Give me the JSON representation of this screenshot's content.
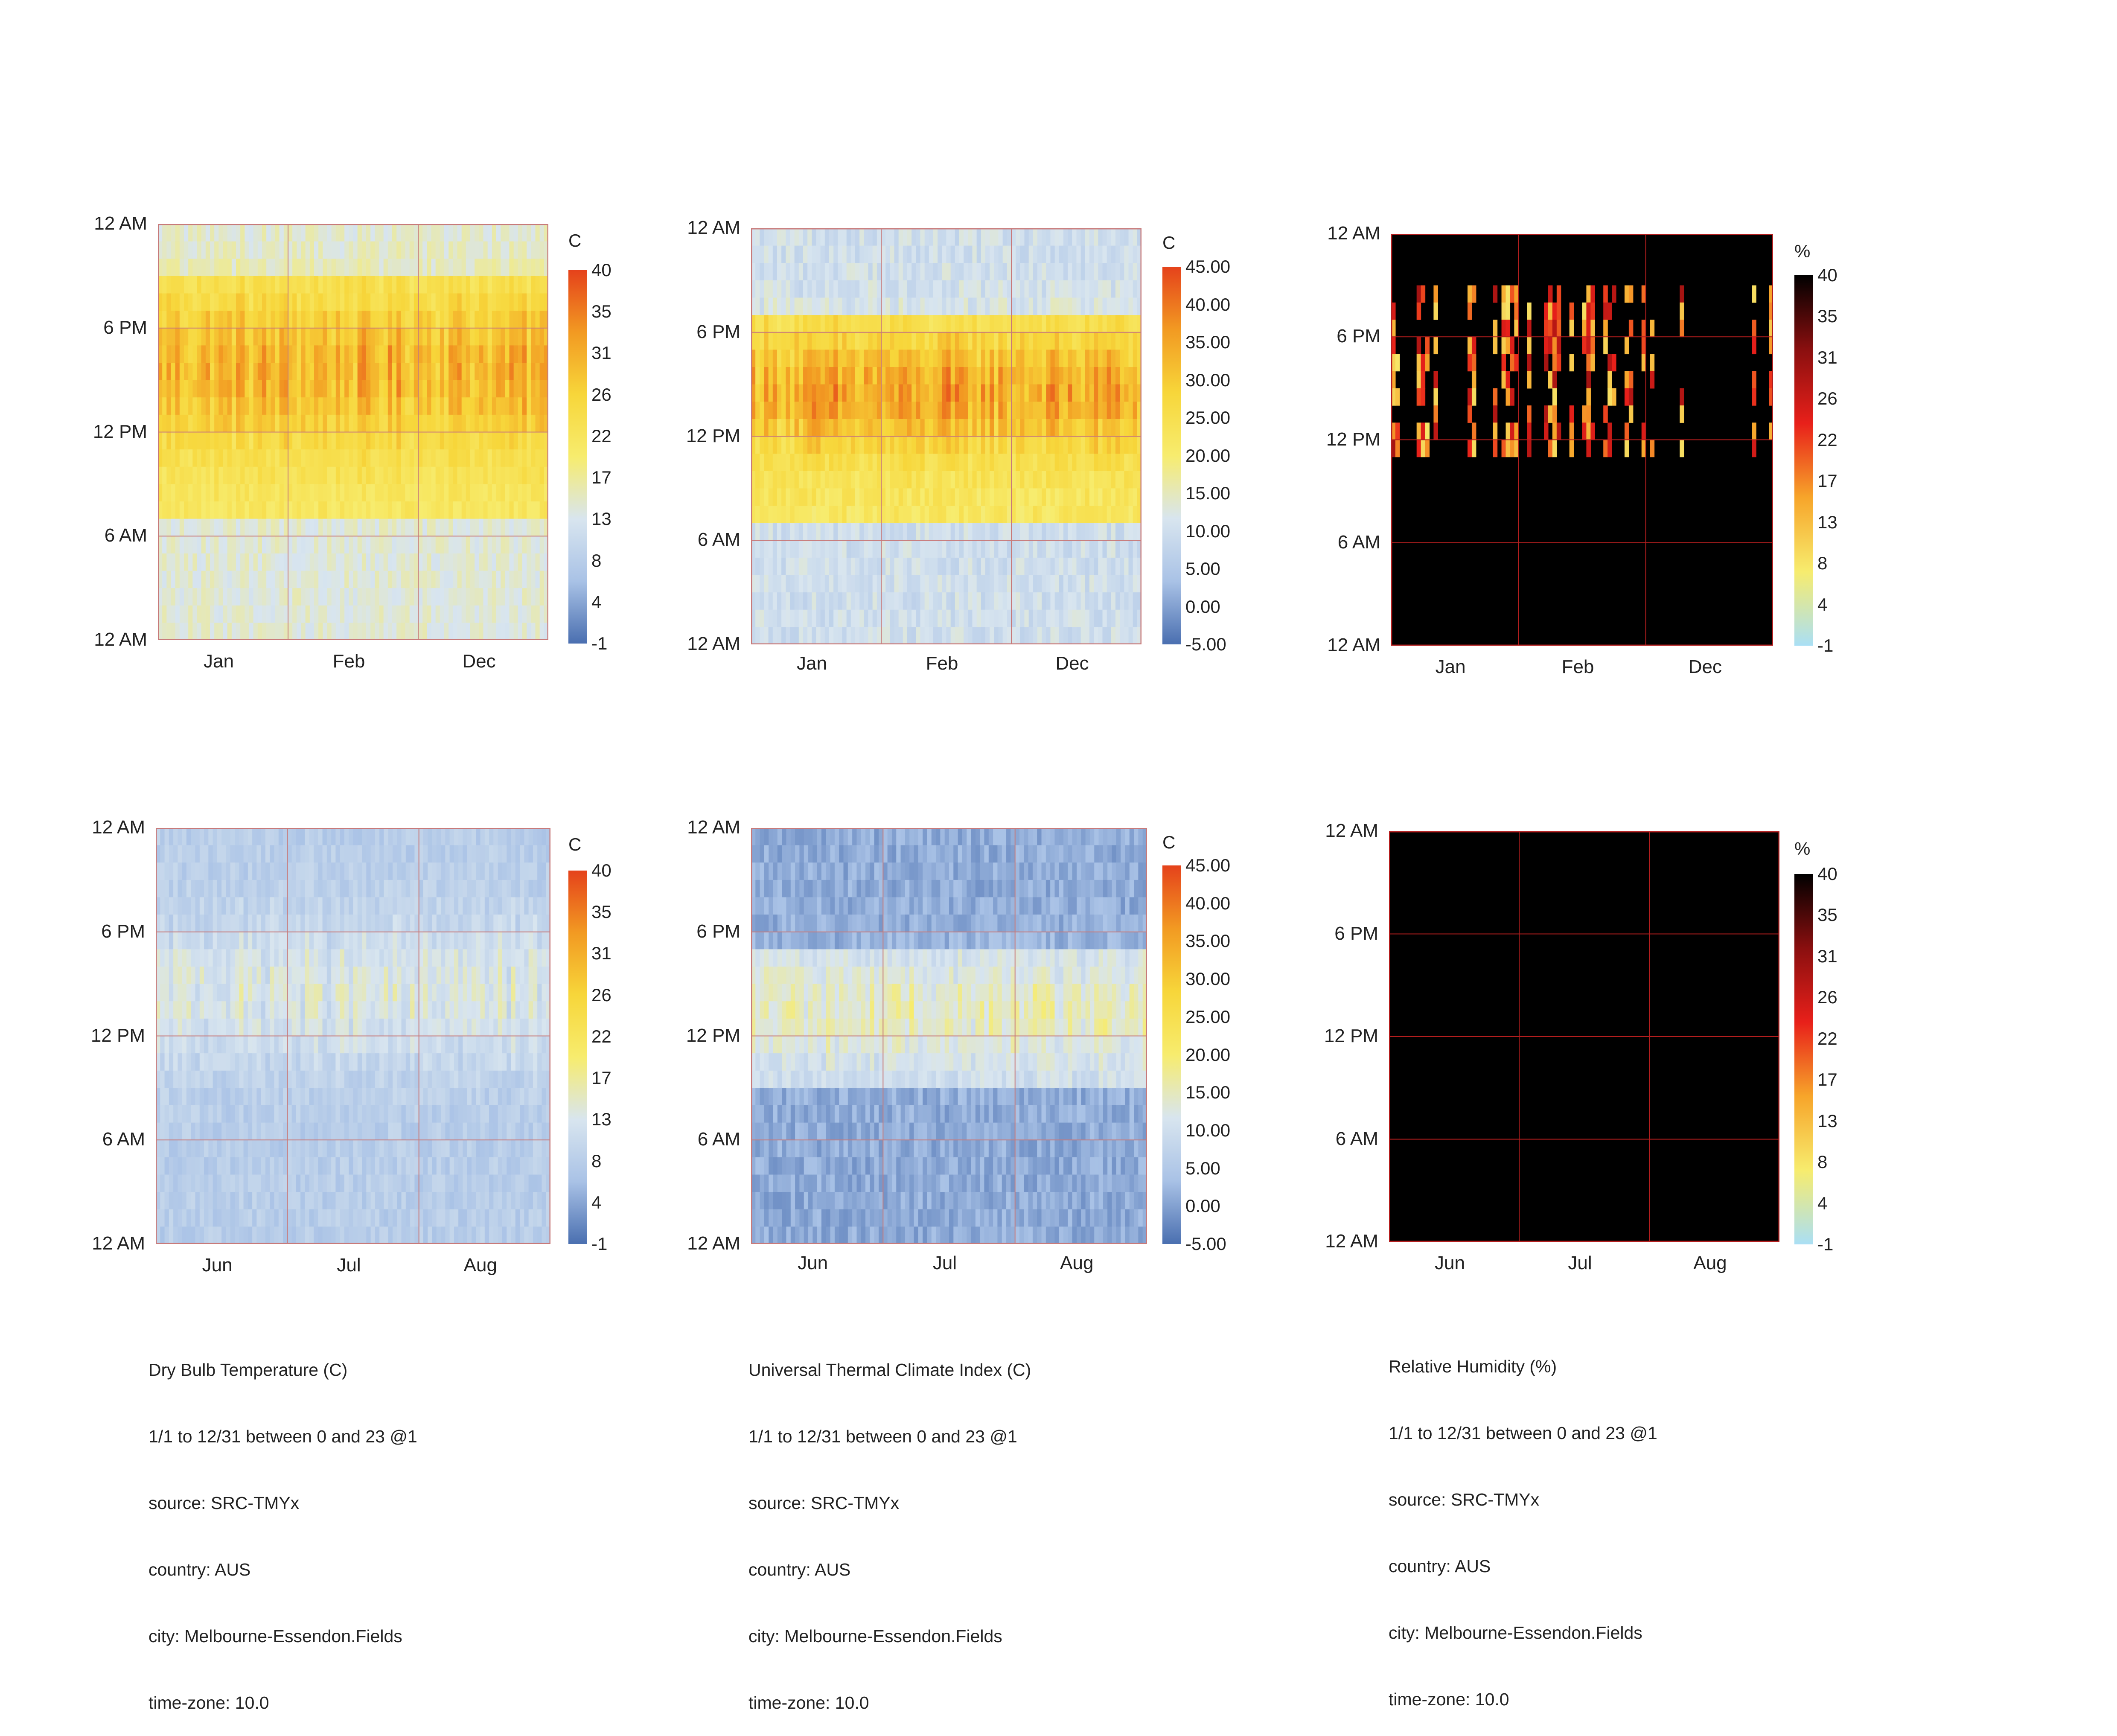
{
  "charts": [
    {
      "id": "drybulb-jan-dec",
      "type": "heatmap",
      "title": "Dry Bulb Temperature (C)",
      "unit": "C",
      "y_ticks": [
        "12 AM",
        "6 PM",
        "12 PM",
        "6 AM",
        "12 AM"
      ],
      "x_ticks": [
        "Jan",
        "Feb",
        "Dec"
      ],
      "legend_ticks": [
        "40",
        "35",
        "31",
        "26",
        "22",
        "17",
        "13",
        "8",
        "4",
        "-1"
      ],
      "legend_range": [
        -1,
        40
      ],
      "palette": [
        "#4a6fb0",
        "#a9c2e6",
        "#d8e5ef",
        "#f7ec6e",
        "#f7d63a",
        "#f29a22",
        "#e5421b"
      ],
      "background": "#f7e76a",
      "grid_color": "#c87a7a",
      "pattern": "summer-temp",
      "mean_value": 21
    },
    {
      "id": "utci-jan-dec",
      "type": "heatmap",
      "title": "Universal Thermal Climate Index (C)",
      "unit": "C",
      "y_ticks": [
        "12 AM",
        "6 PM",
        "12 PM",
        "6 AM",
        "12 AM"
      ],
      "x_ticks": [
        "Jan",
        "Feb",
        "Dec"
      ],
      "legend_ticks": [
        "45.00",
        "40.00",
        "35.00",
        "30.00",
        "25.00",
        "20.00",
        "15.00",
        "10.00",
        "5.00",
        "0.00",
        "-5.00"
      ],
      "legend_range": [
        -5,
        45
      ],
      "palette": [
        "#4a6fb0",
        "#a9c2e6",
        "#d8e5ef",
        "#f7ec6e",
        "#f7d63a",
        "#f29a22",
        "#e5421b"
      ],
      "background": "#f7e76a",
      "grid_color": "#c87a7a",
      "pattern": "summer-utci",
      "mean_value": 20
    },
    {
      "id": "rh-jan-dec",
      "type": "heatmap",
      "title": "Relative Humidity (%)",
      "unit": "%",
      "y_ticks": [
        "12 AM",
        "6 PM",
        "12 PM",
        "6 AM",
        "12 AM"
      ],
      "x_ticks": [
        "Jan",
        "Feb",
        "Dec"
      ],
      "legend_ticks": [
        "40",
        "35",
        "31",
        "26",
        "22",
        "17",
        "13",
        "8",
        "4",
        "-1"
      ],
      "legend_range": [
        -1,
        40
      ],
      "palette": [
        "#aadff5",
        "#f7ec6e",
        "#f7a52a",
        "#e8201a",
        "#8a0f0f",
        "#000000"
      ],
      "background": "#000000",
      "grid_color": "#b41e1e",
      "pattern": "summer-rh",
      "mean_value": 40
    },
    {
      "id": "drybulb-jun-aug",
      "type": "heatmap",
      "title": "Dry Bulb Temperature (C)",
      "unit": "C",
      "y_ticks": [
        "12 AM",
        "6 PM",
        "12 PM",
        "6 AM",
        "12 AM"
      ],
      "x_ticks": [
        "Jun",
        "Jul",
        "Aug"
      ],
      "legend_ticks": [
        "40",
        "35",
        "31",
        "26",
        "22",
        "17",
        "13",
        "8",
        "4",
        "-1"
      ],
      "legend_range": [
        -1,
        40
      ],
      "palette": [
        "#4a6fb0",
        "#a9c2e6",
        "#d8e5ef",
        "#f7ec6e",
        "#f7d63a",
        "#f29a22",
        "#e5421b"
      ],
      "background": "#b6cbe8",
      "grid_color": "#c87a7a",
      "pattern": "winter-temp",
      "mean_value": 10
    },
    {
      "id": "utci-jun-aug",
      "type": "heatmap",
      "title": "Universal Thermal Climate Index (C)",
      "unit": "C",
      "y_ticks": [
        "12 AM",
        "6 PM",
        "12 PM",
        "6 AM",
        "12 AM"
      ],
      "x_ticks": [
        "Jun",
        "Jul",
        "Aug"
      ],
      "legend_ticks": [
        "45.00",
        "40.00",
        "35.00",
        "30.00",
        "25.00",
        "20.00",
        "15.00",
        "10.00",
        "5.00",
        "0.00",
        "-5.00"
      ],
      "legend_range": [
        -5,
        45
      ],
      "palette": [
        "#4a6fb0",
        "#a9c2e6",
        "#d8e5ef",
        "#f7ec6e",
        "#f7d63a",
        "#f29a22",
        "#e5421b"
      ],
      "background": "#6f8fca",
      "grid_color": "#c87a7a",
      "pattern": "winter-utci",
      "mean_value": 5
    },
    {
      "id": "rh-jun-aug",
      "type": "heatmap",
      "title": "Relative Humidity (%)",
      "unit": "%",
      "y_ticks": [
        "12 AM",
        "6 PM",
        "12 PM",
        "6 AM",
        "12 AM"
      ],
      "x_ticks": [
        "Jun",
        "Jul",
        "Aug"
      ],
      "legend_ticks": [
        "40",
        "35",
        "31",
        "26",
        "22",
        "17",
        "13",
        "8",
        "4",
        "-1"
      ],
      "legend_range": [
        -1,
        40
      ],
      "palette": [
        "#aadff5",
        "#f7ec6e",
        "#f7a52a",
        "#e8201a",
        "#8a0f0f",
        "#000000"
      ],
      "background": "#000000",
      "grid_color": "#b41e1e",
      "pattern": "winter-rh",
      "mean_value": 40
    }
  ],
  "captions": [
    {
      "title": "Dry Bulb Temperature (C)",
      "period": "1/1 to 12/31 between 0 and 23 @1",
      "source": "source: SRC-TMYx",
      "country": "country: AUS",
      "city": "city: Melbourne-Essendon.Fields",
      "timezone": "time-zone: 10.0"
    },
    {
      "title": "Universal Thermal Climate Index (C)",
      "period": "1/1 to 12/31 between 0 and 23 @1",
      "source": "source: SRC-TMYx",
      "country": "country: AUS",
      "city": "city: Melbourne-Essendon.Fields",
      "timezone": "time-zone: 10.0"
    },
    {
      "title": "Relative Humidity (%)",
      "period": "1/1 to 12/31 between 0 and 23 @1",
      "source": "source: SRC-TMYx",
      "country": "country: AUS",
      "city": "city: Melbourne-Essendon.Fields",
      "timezone": "time-zone: 10.0"
    }
  ]
}
